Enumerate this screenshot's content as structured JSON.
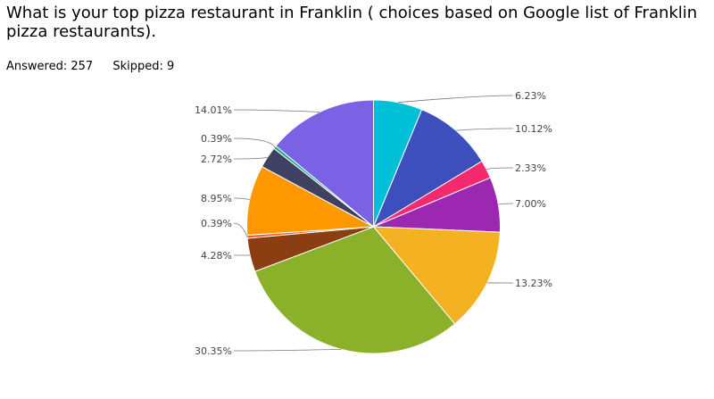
{
  "question": {
    "title": "What is your top pizza restaurant in Franklin ( choices based on Google list of Franklin pizza restaurants)."
  },
  "stats": {
    "answered_label": "Answered:",
    "answered": "257",
    "skipped_label": "Skipped:",
    "skipped": "9"
  },
  "chart_data": {
    "type": "pie",
    "values": [
      6.23,
      10.12,
      2.33,
      7.0,
      13.23,
      30.35,
      4.28,
      0.39,
      8.95,
      2.72,
      0.39,
      14.01
    ],
    "labels": [
      "6.23%",
      "10.12%",
      "2.33%",
      "7.00%",
      "13.23%",
      "30.35%",
      "4.28%",
      "0.39%",
      "8.95%",
      "2.72%",
      "0.39%",
      "14.01%"
    ],
    "colors": [
      "#00c0d8",
      "#3c4fbd",
      "#f5296d",
      "#9c27b0",
      "#f4b223",
      "#8bb02a",
      "#8a3e12",
      "#ff5722",
      "#ff9800",
      "#404063",
      "#1aaa8a",
      "#7b61e4"
    ],
    "start_angle_deg": 0,
    "direction": "clockwise",
    "legend": "none"
  }
}
